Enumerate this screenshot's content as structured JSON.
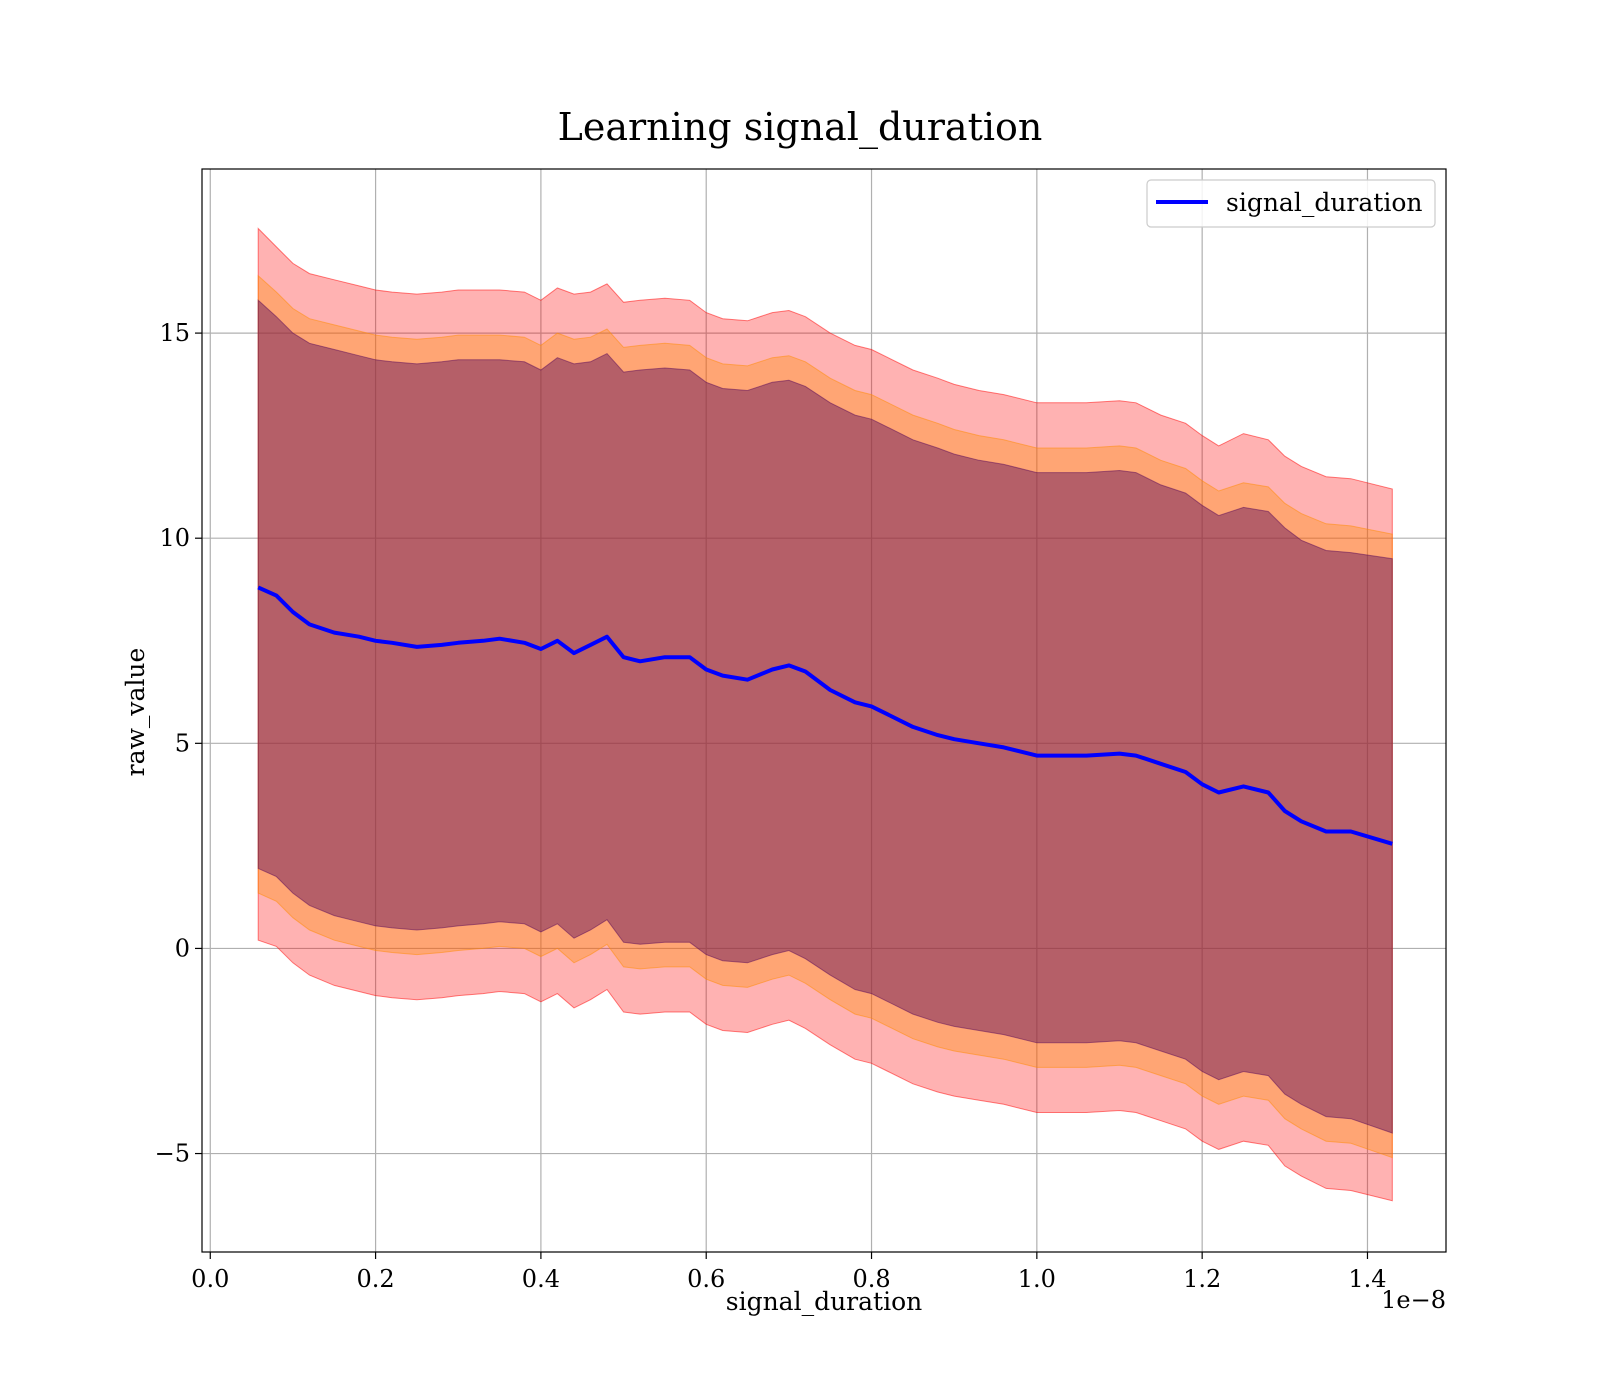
{
  "chart_data": {
    "type": "line",
    "title": "Learning signal_duration",
    "xlabel": "signal_duration",
    "ylabel": "raw_value",
    "x_offset_label": "1e−8",
    "xlim": [
      -0.01,
      1.495
    ],
    "ylim": [
      -7.4,
      19
    ],
    "x_ticks": [
      0.0,
      0.2,
      0.4,
      0.6,
      0.8,
      1.0,
      1.2,
      1.4
    ],
    "x_tick_labels": [
      "0.0",
      "0.2",
      "0.4",
      "0.6",
      "0.8",
      "1.0",
      "1.2",
      "1.4"
    ],
    "y_ticks": [
      -5,
      0,
      5,
      10,
      15
    ],
    "y_tick_labels": [
      "−5",
      "0",
      "5",
      "10",
      "15"
    ],
    "grid": true,
    "legend": {
      "position": "upper right",
      "entries": [
        "signal_duration"
      ]
    },
    "colors": {
      "line": "#0000ff",
      "band_outer": "#ff0000",
      "band_middle": "#ff8c00",
      "band_inner": "#5a0a5a"
    },
    "x": [
      0.058,
      0.08,
      0.1,
      0.12,
      0.15,
      0.18,
      0.2,
      0.22,
      0.25,
      0.28,
      0.3,
      0.33,
      0.35,
      0.38,
      0.4,
      0.42,
      0.44,
      0.46,
      0.48,
      0.5,
      0.52,
      0.55,
      0.58,
      0.6,
      0.62,
      0.65,
      0.68,
      0.7,
      0.72,
      0.75,
      0.78,
      0.8,
      0.82,
      0.85,
      0.88,
      0.9,
      0.93,
      0.96,
      1.0,
      1.03,
      1.06,
      1.1,
      1.12,
      1.15,
      1.18,
      1.2,
      1.22,
      1.25,
      1.28,
      1.3,
      1.32,
      1.35,
      1.38,
      1.43
    ],
    "series": [
      {
        "name": "signal_duration",
        "values": [
          8.8,
          8.6,
          8.2,
          7.9,
          7.7,
          7.6,
          7.5,
          7.45,
          7.35,
          7.4,
          7.45,
          7.5,
          7.55,
          7.45,
          7.3,
          7.5,
          7.2,
          7.4,
          7.6,
          7.1,
          7.0,
          7.1,
          7.1,
          6.8,
          6.65,
          6.55,
          6.8,
          6.9,
          6.75,
          6.3,
          6.0,
          5.9,
          5.7,
          5.4,
          5.2,
          5.1,
          5.0,
          4.9,
          4.7,
          4.7,
          4.7,
          4.75,
          4.7,
          4.5,
          4.3,
          4.0,
          3.8,
          3.95,
          3.8,
          3.35,
          3.1,
          2.85,
          2.85,
          2.55
        ]
      }
    ],
    "bands": [
      {
        "name": "outer",
        "upper": [
          17.55,
          17.1,
          16.7,
          16.45,
          16.3,
          16.15,
          16.05,
          16.0,
          15.95,
          16.0,
          16.05,
          16.05,
          16.05,
          16.0,
          15.8,
          16.1,
          15.95,
          16.0,
          16.2,
          15.75,
          15.8,
          15.85,
          15.8,
          15.5,
          15.35,
          15.3,
          15.5,
          15.55,
          15.4,
          15.0,
          14.7,
          14.6,
          14.4,
          14.1,
          13.9,
          13.75,
          13.6,
          13.5,
          13.3,
          13.3,
          13.3,
          13.35,
          13.3,
          13.0,
          12.8,
          12.5,
          12.25,
          12.55,
          12.4,
          12.0,
          11.75,
          11.5,
          11.45,
          11.2
        ],
        "lower": [
          0.2,
          0.05,
          -0.35,
          -0.65,
          -0.9,
          -1.05,
          -1.15,
          -1.2,
          -1.25,
          -1.2,
          -1.15,
          -1.1,
          -1.05,
          -1.1,
          -1.3,
          -1.1,
          -1.45,
          -1.25,
          -1.0,
          -1.55,
          -1.6,
          -1.55,
          -1.55,
          -1.85,
          -2.0,
          -2.05,
          -1.85,
          -1.75,
          -1.95,
          -2.35,
          -2.7,
          -2.8,
          -3.0,
          -3.3,
          -3.5,
          -3.6,
          -3.7,
          -3.8,
          -4.0,
          -4.0,
          -4.0,
          -3.95,
          -4.0,
          -4.2,
          -4.4,
          -4.7,
          -4.9,
          -4.7,
          -4.8,
          -5.3,
          -5.55,
          -5.85,
          -5.9,
          -6.15
        ]
      },
      {
        "name": "middle",
        "upper": [
          16.4,
          16.0,
          15.6,
          15.35,
          15.2,
          15.05,
          14.95,
          14.9,
          14.85,
          14.9,
          14.95,
          14.95,
          14.95,
          14.9,
          14.7,
          15.0,
          14.85,
          14.9,
          15.1,
          14.65,
          14.7,
          14.75,
          14.7,
          14.4,
          14.25,
          14.2,
          14.4,
          14.45,
          14.3,
          13.9,
          13.6,
          13.5,
          13.3,
          13.0,
          12.8,
          12.65,
          12.5,
          12.4,
          12.2,
          12.2,
          12.2,
          12.25,
          12.2,
          11.9,
          11.7,
          11.4,
          11.15,
          11.35,
          11.25,
          10.85,
          10.6,
          10.35,
          10.3,
          10.1
        ],
        "lower": [
          1.35,
          1.15,
          0.75,
          0.45,
          0.2,
          0.05,
          -0.05,
          -0.1,
          -0.15,
          -0.1,
          -0.05,
          0.0,
          0.05,
          0.0,
          -0.2,
          0.0,
          -0.35,
          -0.15,
          0.1,
          -0.45,
          -0.5,
          -0.45,
          -0.45,
          -0.75,
          -0.9,
          -0.95,
          -0.75,
          -0.65,
          -0.85,
          -1.25,
          -1.6,
          -1.7,
          -1.9,
          -2.2,
          -2.4,
          -2.5,
          -2.6,
          -2.7,
          -2.9,
          -2.9,
          -2.9,
          -2.85,
          -2.9,
          -3.1,
          -3.3,
          -3.6,
          -3.8,
          -3.6,
          -3.7,
          -4.15,
          -4.4,
          -4.7,
          -4.75,
          -5.1
        ]
      },
      {
        "name": "inner",
        "upper": [
          15.8,
          15.4,
          15.0,
          14.75,
          14.6,
          14.45,
          14.35,
          14.3,
          14.25,
          14.3,
          14.35,
          14.35,
          14.35,
          14.3,
          14.1,
          14.4,
          14.25,
          14.3,
          14.5,
          14.05,
          14.1,
          14.15,
          14.1,
          13.8,
          13.65,
          13.6,
          13.8,
          13.85,
          13.7,
          13.3,
          13.0,
          12.9,
          12.7,
          12.4,
          12.2,
          12.05,
          11.9,
          11.8,
          11.6,
          11.6,
          11.6,
          11.65,
          11.6,
          11.3,
          11.1,
          10.8,
          10.55,
          10.75,
          10.65,
          10.25,
          9.95,
          9.7,
          9.65,
          9.5
        ],
        "lower": [
          1.95,
          1.75,
          1.35,
          1.05,
          0.8,
          0.65,
          0.55,
          0.5,
          0.45,
          0.5,
          0.55,
          0.6,
          0.65,
          0.6,
          0.4,
          0.6,
          0.25,
          0.45,
          0.7,
          0.15,
          0.1,
          0.15,
          0.15,
          -0.15,
          -0.3,
          -0.35,
          -0.15,
          -0.05,
          -0.25,
          -0.65,
          -1.0,
          -1.1,
          -1.3,
          -1.6,
          -1.8,
          -1.9,
          -2.0,
          -2.1,
          -2.3,
          -2.3,
          -2.3,
          -2.25,
          -2.3,
          -2.5,
          -2.7,
          -3.0,
          -3.2,
          -3.0,
          -3.1,
          -3.55,
          -3.8,
          -4.1,
          -4.15,
          -4.5
        ]
      }
    ]
  }
}
